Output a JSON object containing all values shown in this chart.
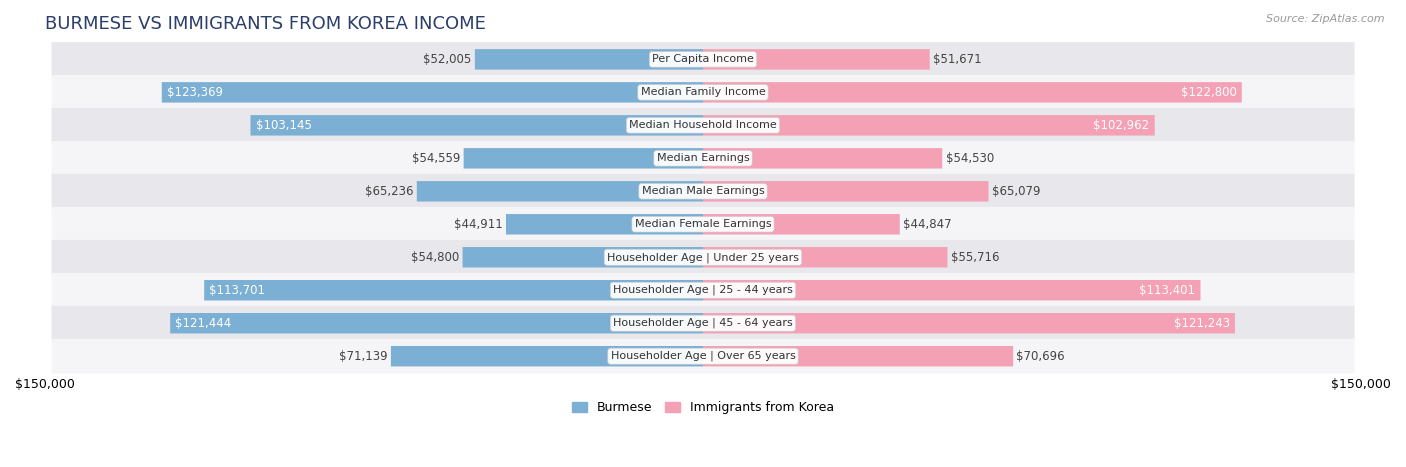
{
  "title": "BURMESE VS IMMIGRANTS FROM KOREA INCOME",
  "source": "Source: ZipAtlas.com",
  "categories": [
    "Per Capita Income",
    "Median Family Income",
    "Median Household Income",
    "Median Earnings",
    "Median Male Earnings",
    "Median Female Earnings",
    "Householder Age | Under 25 years",
    "Householder Age | 25 - 44 years",
    "Householder Age | 45 - 64 years",
    "Householder Age | Over 65 years"
  ],
  "burmese_values": [
    52005,
    123369,
    103145,
    54559,
    65236,
    44911,
    54800,
    113701,
    121444,
    71139
  ],
  "korea_values": [
    51671,
    122800,
    102962,
    54530,
    65079,
    44847,
    55716,
    113401,
    121243,
    70696
  ],
  "burmese_color": "#7bafd4",
  "burmese_color_dark": "#4a90c4",
  "korea_color": "#f4a0b5",
  "korea_color_dark": "#e8607a",
  "bar_height": 0.62,
  "row_bg_color": "#e8e8ec",
  "row_bg_color_alt": "#f5f5f8",
  "xlim": 150000,
  "legend_burmese": "Burmese",
  "legend_korea": "Immigrants from Korea",
  "title_fontsize": 13,
  "label_fontsize": 8.5,
  "axis_fontsize": 9,
  "category_fontsize": 8.0,
  "background_color": "#ffffff",
  "title_color": "#2c3e6b",
  "label_dark_color": "#444444",
  "label_white_color": "#ffffff",
  "label_threshold": 80000
}
